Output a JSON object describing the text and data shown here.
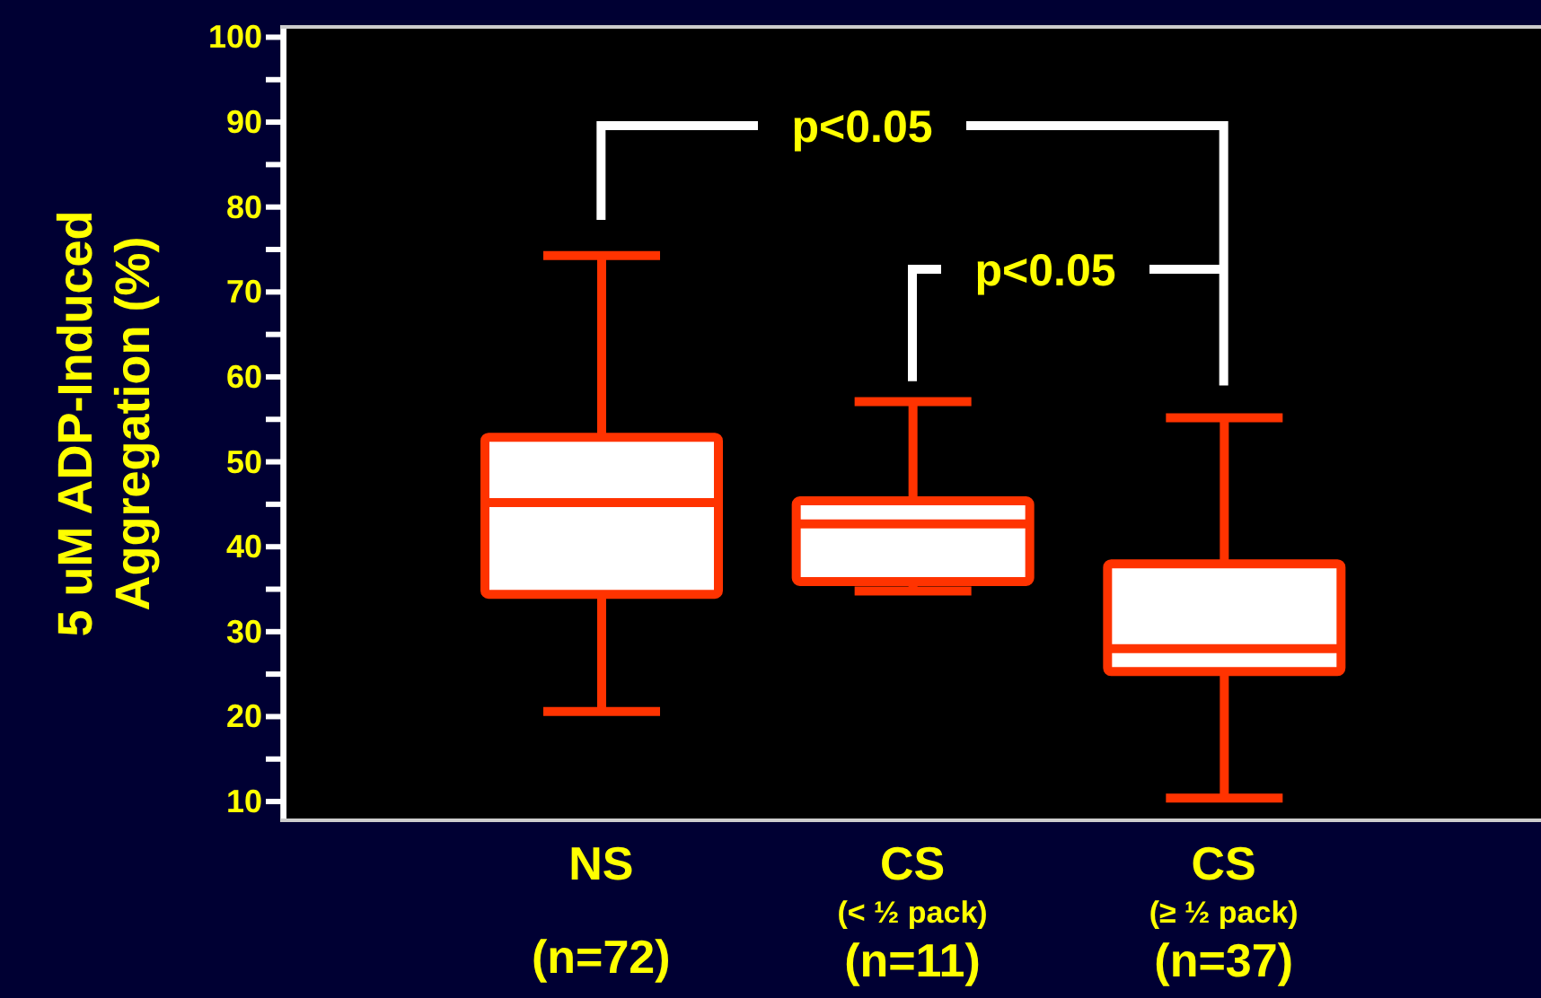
{
  "chart_data": {
    "type": "box",
    "ylabel": "5 uM ADP-Induced\nAggregation (%)",
    "categories": [
      "NS\n(n=72)",
      "CS\n(< ½ pack)\n(n=11)",
      "CS\n(≥ ½ pack)\n(n=37)"
    ],
    "series": [
      {
        "color": "#ff3300",
        "boxes": [
          {
            "low": 20.6,
            "q1": 34.4,
            "median": 45.2,
            "q3": 52.9,
            "high": 74.3
          },
          {
            "low": 34.8,
            "q1": 35.9,
            "median": 42.7,
            "q3": 45.4,
            "high": 57.1
          },
          {
            "low": 10.4,
            "q1": 25.3,
            "median": 28,
            "q3": 38,
            "high": 55.2
          }
        ]
      }
    ],
    "ylim": [
      8,
      101
    ],
    "yticks": [
      10,
      {
        "value": 15,
        "label": null
      },
      20,
      {
        "value": 25,
        "label": null
      },
      30,
      {
        "value": 35,
        "label": null
      },
      40,
      {
        "value": 45,
        "label": null
      },
      50,
      {
        "value": 55,
        "label": null
      },
      60,
      {
        "value": 65,
        "label": null
      },
      70,
      {
        "value": 75,
        "label": null
      },
      80,
      {
        "value": 85,
        "label": null
      },
      90,
      {
        "value": 95,
        "label": null
      },
      100
    ],
    "annotations": [
      "p<0.05",
      "p<0.05"
    ]
  }
}
